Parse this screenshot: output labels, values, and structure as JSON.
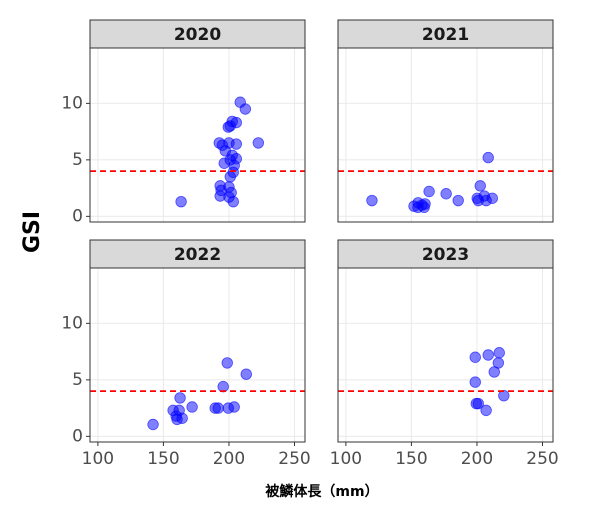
{
  "ylabel": "GSI",
  "xlabel": "被鱗体長（mm）",
  "chart_data": [
    {
      "type": "scatter",
      "title": "2020",
      "color": "#0000ff",
      "hline": 4,
      "hline_color": "#ff0000",
      "xlim": [
        94,
        258
      ],
      "ylim": [
        -0.5,
        14.9
      ],
      "xticks": [
        100,
        150,
        200,
        250
      ],
      "yticks": [
        0,
        5,
        10
      ],
      "grid": true,
      "x": [
        163.5,
        208.6,
        212.5,
        222.4,
        205.6,
        202.5,
        201,
        199.5,
        192.6,
        195,
        200,
        205.6,
        197.2,
        202.5,
        205.6,
        201,
        196.4,
        204,
        203.3,
        201,
        193.3,
        200,
        194,
        201.7,
        193.3,
        200,
        203.3
      ],
      "values": [
        1.3,
        10.1,
        9.5,
        6.5,
        8.3,
        8.4,
        8.0,
        7.9,
        6.5,
        6.3,
        6.5,
        6.4,
        5.8,
        5.4,
        5.1,
        5.0,
        4.7,
        4.5,
        3.9,
        3.5,
        2.7,
        2.6,
        2.3,
        2.1,
        1.8,
        1.7,
        1.3
      ]
    },
    {
      "type": "scatter",
      "title": "2021",
      "color": "#0000ff",
      "hline": 4,
      "hline_color": "#ff0000",
      "xlim": [
        94,
        258
      ],
      "ylim": [
        -0.5,
        14.9
      ],
      "xticks": [
        100,
        150,
        200,
        250
      ],
      "yticks": [
        0,
        5,
        10
      ],
      "grid": true,
      "x": [
        119.9,
        152,
        155.1,
        158.1,
        160.4,
        155,
        159.7,
        163.5,
        176.5,
        185.7,
        202.5,
        208.6,
        200.2,
        205.6,
        207,
        211.7,
        201
      ],
      "values": [
        1.4,
        0.9,
        1.2,
        1.0,
        1.1,
        0.8,
        0.8,
        2.2,
        2.0,
        1.4,
        2.7,
        5.2,
        1.6,
        1.8,
        1.4,
        1.6,
        1.4
      ]
    },
    {
      "type": "scatter",
      "title": "2022",
      "color": "#0000ff",
      "hline": 4,
      "hline_color": "#ff0000",
      "xlim": [
        94,
        258
      ],
      "ylim": [
        -0.5,
        14.9
      ],
      "xticks": [
        100,
        150,
        200,
        250
      ],
      "yticks": [
        0,
        5,
        10
      ],
      "grid": true,
      "x": [
        142.1,
        157.4,
        162.7,
        162,
        159.7,
        160.4,
        164.3,
        171.9,
        189.5,
        191.8,
        195.6,
        198.7,
        199.5,
        204,
        213.2
      ],
      "values": [
        1.05,
        2.3,
        3.4,
        2.3,
        1.8,
        1.5,
        1.6,
        2.6,
        2.5,
        2.5,
        4.4,
        6.5,
        2.5,
        2.6,
        5.5
      ]
    },
    {
      "type": "scatter",
      "title": "2023",
      "color": "#0000ff",
      "hline": 4,
      "hline_color": "#ff0000",
      "xlim": [
        94,
        258
      ],
      "ylim": [
        -0.5,
        14.9
      ],
      "xticks": [
        100,
        150,
        200,
        250
      ],
      "yticks": [
        0,
        5,
        10
      ],
      "grid": true,
      "x": [
        198.7,
        198.7,
        199.5,
        201,
        208.6,
        207,
        217,
        216.3,
        213.2,
        220.5
      ],
      "values": [
        7.0,
        4.8,
        2.9,
        2.9,
        7.2,
        2.3,
        7.4,
        6.5,
        5.7,
        3.6
      ]
    }
  ]
}
